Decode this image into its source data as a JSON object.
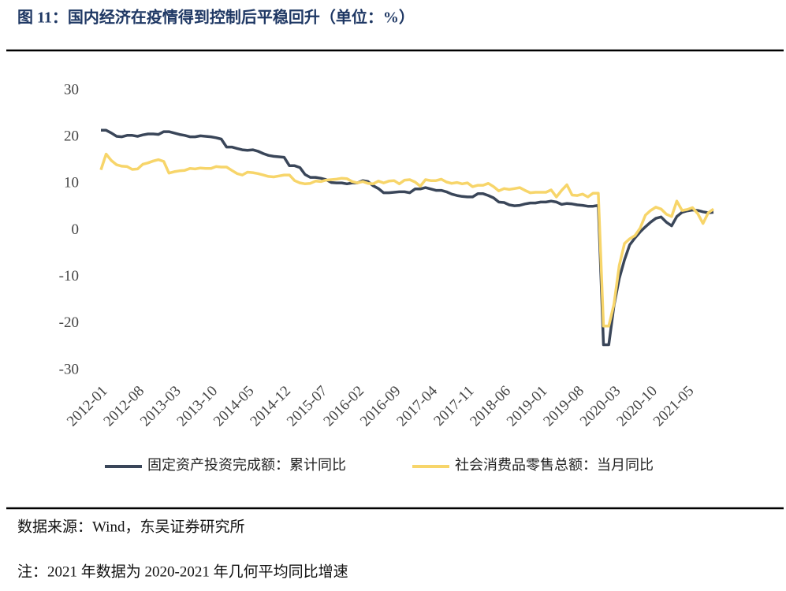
{
  "chart_data": {
    "type": "line",
    "title": "图 11：国内经济在疫情得到控制后平稳回升（单位：%）",
    "source": "数据来源：Wind，东吴证券研究所",
    "note": "注：2021 年数据为 2020-2021 年几何平均同比增速",
    "categories": [
      "2012-01",
      null,
      null,
      null,
      null,
      null,
      null,
      "2012-08",
      null,
      null,
      null,
      null,
      null,
      null,
      "2013-03",
      null,
      null,
      null,
      null,
      null,
      null,
      "2013-10",
      null,
      null,
      null,
      null,
      null,
      null,
      "2014-05",
      null,
      null,
      null,
      null,
      null,
      null,
      "2014-12",
      null,
      null,
      null,
      null,
      null,
      null,
      "2015-07",
      null,
      null,
      null,
      null,
      null,
      null,
      "2016-02",
      null,
      null,
      null,
      null,
      null,
      null,
      "2016-09",
      null,
      null,
      null,
      null,
      null,
      null,
      "2017-04",
      null,
      null,
      null,
      null,
      null,
      null,
      "2017-11",
      null,
      null,
      null,
      null,
      null,
      null,
      "2018-06",
      null,
      null,
      null,
      null,
      null,
      null,
      "2019-01",
      null,
      null,
      null,
      null,
      null,
      null,
      "2019-08",
      null,
      null,
      null,
      null,
      null,
      null,
      "2020-03",
      null,
      null,
      null,
      null,
      null,
      null,
      "2020-10",
      null,
      null,
      null,
      null,
      null,
      null,
      "2021-05",
      null,
      null,
      null,
      null,
      null
    ],
    "series": [
      {
        "name": "固定资产投资完成额：累计同比",
        "color": "#3a4659",
        "values": [
          21.5,
          21.5,
          20.9,
          20.2,
          20.1,
          20.4,
          20.4,
          20.2,
          20.5,
          20.7,
          20.7,
          20.6,
          21.2,
          21.2,
          20.9,
          20.6,
          20.4,
          20.1,
          20.1,
          20.3,
          20.2,
          20.1,
          19.9,
          19.6,
          17.9,
          17.9,
          17.6,
          17.3,
          17.2,
          17.3,
          17.0,
          16.5,
          16.1,
          15.9,
          15.8,
          15.7,
          13.9,
          13.9,
          13.5,
          12.0,
          11.4,
          11.4,
          11.2,
          10.9,
          10.3,
          10.2,
          10.2,
          10.0,
          10.2,
          10.2,
          10.7,
          10.5,
          9.6,
          9.0,
          8.1,
          8.1,
          8.2,
          8.3,
          8.3,
          8.1,
          8.9,
          8.9,
          9.2,
          8.9,
          8.6,
          8.6,
          8.3,
          7.8,
          7.5,
          7.3,
          7.2,
          7.2,
          7.9,
          7.9,
          7.5,
          7.0,
          6.1,
          6.0,
          5.5,
          5.3,
          5.4,
          5.7,
          5.9,
          5.9,
          6.1,
          6.1,
          6.3,
          6.1,
          5.6,
          5.8,
          5.7,
          5.5,
          5.4,
          5.2,
          5.2,
          5.4,
          -24.5,
          -24.5,
          -16.1,
          -10.3,
          -6.3,
          -3.1,
          -1.6,
          -0.3,
          0.8,
          1.8,
          2.6,
          2.9,
          1.8,
          1.0,
          3.0,
          3.9,
          4.2,
          4.4,
          4.3,
          4.0,
          3.8,
          3.9
        ]
      },
      {
        "name": "社会消费品零售总额：当月同比",
        "color": "#f7d56a",
        "values": [
          13.0,
          16.4,
          15.0,
          14.1,
          13.8,
          13.7,
          13.1,
          13.2,
          14.2,
          14.5,
          14.9,
          15.2,
          14.8,
          12.3,
          12.6,
          12.8,
          12.9,
          13.3,
          13.2,
          13.4,
          13.3,
          13.3,
          13.7,
          13.6,
          13.6,
          12.9,
          12.2,
          11.9,
          12.5,
          12.4,
          12.2,
          11.9,
          11.6,
          11.5,
          11.7,
          11.9,
          11.9,
          10.7,
          10.2,
          10.0,
          10.1,
          10.6,
          10.5,
          10.8,
          10.9,
          11.0,
          11.2,
          11.1,
          10.5,
          10.2,
          10.5,
          10.1,
          10.0,
          10.6,
          10.2,
          10.6,
          10.7,
          10.0,
          10.8,
          10.9,
          10.4,
          9.5,
          10.9,
          10.7,
          10.7,
          11.0,
          10.4,
          10.1,
          10.3,
          10.0,
          10.2,
          9.4,
          9.7,
          9.7,
          10.1,
          9.4,
          8.5,
          9.0,
          8.8,
          9.0,
          9.2,
          8.6,
          8.1,
          8.2,
          8.2,
          8.2,
          8.7,
          7.2,
          8.6,
          9.8,
          7.6,
          7.5,
          7.8,
          7.2,
          8.0,
          8.0,
          -20.5,
          -20.5,
          -15.8,
          -7.5,
          -2.8,
          -1.8,
          -1.1,
          0.5,
          3.3,
          4.3,
          5.0,
          4.6,
          3.5,
          3.0,
          6.3,
          4.3,
          4.5,
          4.9,
          3.6,
          1.5,
          3.8,
          4.6
        ]
      }
    ],
    "ylim": [
      -30,
      30
    ],
    "yticks": [
      -30,
      -20,
      -10,
      0,
      10,
      20,
      30
    ],
    "grid": false
  }
}
